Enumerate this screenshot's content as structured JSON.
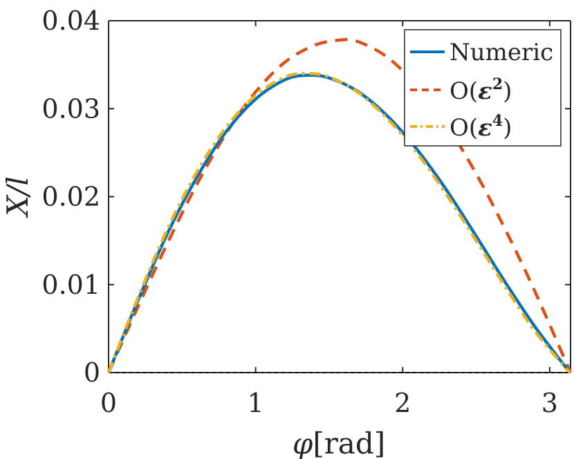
{
  "chart_data": {
    "type": "line",
    "title": "",
    "xlabel": "φ[rad]",
    "xlabel_symbol": "φ",
    "xlabel_unit": "[rad]",
    "ylabel": "X/l",
    "xlim": [
      0,
      3.14159
    ],
    "ylim": [
      0,
      0.04
    ],
    "xticks": [
      0,
      1,
      2,
      3
    ],
    "xtick_labels": [
      "0",
      "1",
      "2",
      "3"
    ],
    "yticks": [
      0,
      0.01,
      0.02,
      0.03,
      0.04
    ],
    "ytick_labels": [
      "0",
      "0.01",
      "0.02",
      "0.03",
      "0.04"
    ],
    "grid": false,
    "legend_position": "top-right",
    "colors": {
      "numeric": "#0072BD",
      "o2": "#D95319",
      "o4": "#EDB120",
      "axis": "#262626",
      "zero_line": "#000000"
    },
    "series": [
      {
        "name": "Numeric",
        "legend_prefix": "Numeric",
        "style": "solid",
        "x": [
          0,
          0.2,
          0.4,
          0.6,
          0.8,
          1.0,
          1.2,
          1.35,
          1.5,
          1.7,
          1.9,
          2.1,
          2.3,
          2.5,
          2.7,
          2.9,
          3.1,
          3.1416
        ],
        "y": [
          0,
          0.0082,
          0.0158,
          0.0222,
          0.0274,
          0.0311,
          0.0333,
          0.0338,
          0.0335,
          0.0319,
          0.0291,
          0.0253,
          0.0207,
          0.0155,
          0.0102,
          0.0052,
          0.0008,
          0
        ]
      },
      {
        "name": "O(ε²)",
        "legend_prefix": "O(",
        "legend_eps": "ε",
        "legend_sup": "2",
        "legend_suffix": ")",
        "style": "dashed",
        "x": [
          0,
          0.2,
          0.4,
          0.6,
          0.8,
          1.0,
          1.2,
          1.4,
          1.5708,
          1.7,
          1.9,
          2.1,
          2.3,
          2.5,
          2.7,
          2.9,
          3.1416
        ],
        "y": [
          0,
          0.0075,
          0.0147,
          0.0214,
          0.0272,
          0.0319,
          0.0353,
          0.0372,
          0.0378,
          0.0376,
          0.0358,
          0.0325,
          0.0281,
          0.0226,
          0.0162,
          0.0092,
          0
        ]
      },
      {
        "name": "O(ε⁴)",
        "legend_prefix": "O(",
        "legend_eps": "ε",
        "legend_sup": "4",
        "legend_suffix": ")",
        "style": "dashdot",
        "x": [
          0,
          0.2,
          0.4,
          0.6,
          0.8,
          1.0,
          1.2,
          1.35,
          1.5,
          1.7,
          1.9,
          2.1,
          2.3,
          2.5,
          2.7,
          2.9,
          3.1,
          3.1416
        ],
        "y": [
          0,
          0.0085,
          0.0163,
          0.0228,
          0.0279,
          0.0315,
          0.0336,
          0.034,
          0.0336,
          0.0318,
          0.0288,
          0.0249,
          0.0202,
          0.015,
          0.0097,
          0.0047,
          0.0007,
          0
        ]
      }
    ]
  }
}
